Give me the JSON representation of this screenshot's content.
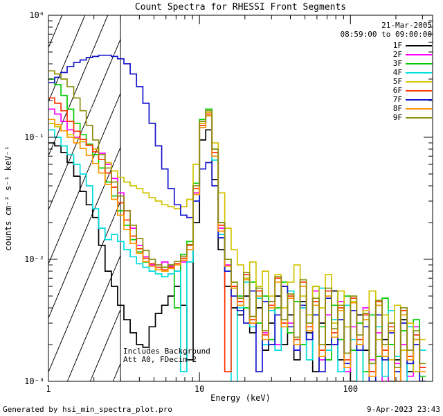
{
  "title": "Count Spectra for RHESSI Front Segments",
  "annotations": {
    "date": "21-Mar-2005",
    "time_range": "08:59:00 to 09:00:00",
    "note_line1": "Includes Background",
    "note_line2": "Att A0, FDecim 2"
  },
  "footer": {
    "generated_by": "Generated by hsi_min_spectra_plot.pro",
    "plot_date": "9-Apr-2023 23:43"
  },
  "chart_data": {
    "type": "line",
    "mode": "histogram-step",
    "title": "Count Spectra for RHESSI Front Segments",
    "xlabel": "Energy (keV)",
    "ylabel": "counts cm⁻² s⁻¹ keV⁻¹",
    "x_scale": "log",
    "y_scale": "log",
    "xlim": [
      1,
      350
    ],
    "ylim": [
      0.001,
      1
    ],
    "grid": false,
    "legend_position": "top-right-inside",
    "x_ticks": [
      {
        "v": 1,
        "label": "1"
      },
      {
        "v": 10,
        "label": "10"
      },
      {
        "v": 100,
        "label": "100"
      }
    ],
    "y_ticks": [
      {
        "v": 0.001,
        "label": "10⁻³"
      },
      {
        "v": 0.01,
        "label": "10⁻²"
      },
      {
        "v": 0.1,
        "label": "10⁻¹"
      },
      {
        "v": 1,
        "label": "10⁰"
      }
    ],
    "hatch_region": {
      "x_start": 1,
      "x_end": 3
    },
    "energies": [
      1.0,
      1.1,
      1.21,
      1.33,
      1.47,
      1.62,
      1.78,
      1.96,
      2.15,
      2.37,
      2.61,
      2.87,
      3.16,
      3.48,
      3.83,
      4.22,
      4.64,
      5.11,
      5.62,
      6.19,
      6.81,
      7.5,
      8.25,
      9.08,
      10.0,
      11.0,
      12.1,
      13.3,
      14.7,
      16.2,
      17.8,
      19.6,
      21.5,
      23.7,
      26.1,
      28.7,
      31.6,
      34.8,
      38.3,
      42.2,
      46.4,
      51.1,
      56.2,
      61.9,
      68.1,
      75.0,
      82.5,
      90.8,
      100,
      110,
      121,
      133,
      147,
      162,
      178,
      196,
      215,
      237,
      261,
      287
    ],
    "series": [
      {
        "name": "1F",
        "color": "#000000",
        "values": [
          0.09,
          0.085,
          0.075,
          0.062,
          0.048,
          0.036,
          0.028,
          0.022,
          0.013,
          0.008,
          0.006,
          0.0042,
          0.0032,
          0.0025,
          0.002,
          0.0019,
          0.0028,
          0.0036,
          0.0042,
          0.005,
          0.006,
          0.0042,
          0.0015,
          0.02,
          0.095,
          0.115,
          0.045,
          0.012,
          0.006,
          0.004,
          0.0035,
          0.005,
          0.0025,
          0.004,
          0.0018,
          0.003,
          0.005,
          0.002,
          0.0035,
          0.0015,
          0.0045,
          0.0025,
          0.0012,
          0.003,
          0.002,
          0.0055,
          0.0015,
          0.0028,
          0.001,
          0.0035,
          0.0018,
          0.0012,
          0.0042,
          0.0022,
          0.001,
          0.0015,
          0.0032,
          0.0012,
          0.0022,
          0.001
        ]
      },
      {
        "name": "2F",
        "color": "#ff00ff",
        "values": [
          0.17,
          0.155,
          0.135,
          0.115,
          0.1,
          0.092,
          0.086,
          0.08,
          0.074,
          0.06,
          0.046,
          0.035,
          0.025,
          0.018,
          0.013,
          0.0105,
          0.009,
          0.009,
          0.0095,
          0.0088,
          0.008,
          0.0095,
          0.012,
          0.035,
          0.13,
          0.16,
          0.07,
          0.018,
          0.009,
          0.006,
          0.0045,
          0.007,
          0.003,
          0.0055,
          0.0025,
          0.0045,
          0.002,
          0.006,
          0.003,
          0.0018,
          0.004,
          0.0022,
          0.0055,
          0.0015,
          0.0035,
          0.002,
          0.0045,
          0.0012,
          0.0028,
          0.0018,
          0.004,
          0.0015,
          0.0025,
          0.001,
          0.003,
          0.0014,
          0.002,
          0.0011,
          0.0028,
          0.0013
        ]
      },
      {
        "name": "3F",
        "color": "#00cc00",
        "values": [
          0.3,
          0.27,
          0.22,
          0.17,
          0.13,
          0.105,
          0.088,
          0.072,
          0.056,
          0.043,
          0.033,
          0.025,
          0.019,
          0.0145,
          0.0115,
          0.0095,
          0.0088,
          0.0082,
          0.0086,
          0.009,
          0.004,
          0.011,
          0.014,
          0.042,
          0.14,
          0.17,
          0.08,
          0.02,
          0.01,
          0.0065,
          0.005,
          0.004,
          0.0065,
          0.003,
          0.005,
          0.0022,
          0.004,
          0.0065,
          0.0025,
          0.0045,
          0.002,
          0.0035,
          0.006,
          0.0028,
          0.0015,
          0.0042,
          0.0022,
          0.005,
          0.0018,
          0.003,
          0.0012,
          0.0035,
          0.0016,
          0.0048,
          0.002,
          0.0012,
          0.0026,
          0.0014,
          0.0032,
          0.0011
        ]
      },
      {
        "name": "4F",
        "color": "#00dddd",
        "values": [
          0.115,
          0.1,
          0.085,
          0.072,
          0.06,
          0.05,
          0.04,
          0.026,
          0.018,
          0.0145,
          0.016,
          0.014,
          0.012,
          0.0105,
          0.0092,
          0.0086,
          0.008,
          0.0076,
          0.0072,
          0.0076,
          0.008,
          0.0012,
          0.0095,
          0.03,
          0.12,
          0.15,
          0.065,
          0.016,
          0.008,
          0.0009,
          0.004,
          0.0065,
          0.0028,
          0.0048,
          0.002,
          0.0038,
          0.0018,
          0.0032,
          0.0055,
          0.0022,
          0.004,
          0.0015,
          0.0035,
          0.0058,
          0.0018,
          0.0032,
          0.0012,
          0.0042,
          0.0022,
          0.0008,
          0.0032,
          0.0014,
          0.0028,
          0.0011,
          0.0038,
          0.0016,
          0.0009,
          0.0028,
          0.0012,
          0.0018
        ]
      },
      {
        "name": "5F",
        "color": "#d2c400",
        "values": [
          0.13,
          0.122,
          0.113,
          0.105,
          0.098,
          0.092,
          0.086,
          0.08,
          0.072,
          0.062,
          0.053,
          0.047,
          0.043,
          0.04,
          0.038,
          0.035,
          0.032,
          0.03,
          0.028,
          0.027,
          0.026,
          0.027,
          0.031,
          0.06,
          0.13,
          0.16,
          0.09,
          0.035,
          0.018,
          0.012,
          0.009,
          0.007,
          0.0095,
          0.006,
          0.008,
          0.005,
          0.0075,
          0.004,
          0.0065,
          0.009,
          0.005,
          0.0035,
          0.006,
          0.004,
          0.0075,
          0.003,
          0.0055,
          0.0028,
          0.0045,
          0.002,
          0.0038,
          0.0055,
          0.0022,
          0.0035,
          0.0015,
          0.0042,
          0.0018,
          0.003,
          0.0012,
          0.0022
        ]
      },
      {
        "name": "6F",
        "color": "#ff3300",
        "values": [
          0.21,
          0.19,
          0.165,
          0.135,
          0.112,
          0.096,
          0.086,
          0.076,
          0.066,
          0.051,
          0.039,
          0.029,
          0.021,
          0.0155,
          0.0122,
          0.0102,
          0.0092,
          0.0086,
          0.0082,
          0.0086,
          0.0092,
          0.0102,
          0.013,
          0.038,
          0.125,
          0.155,
          0.075,
          0.019,
          0.0012,
          0.006,
          0.0045,
          0.0075,
          0.0032,
          0.0055,
          0.0024,
          0.0042,
          0.007,
          0.003,
          0.005,
          0.0022,
          0.0065,
          0.0028,
          0.0045,
          0.0018,
          0.0055,
          0.0025,
          0.004,
          0.0015,
          0.0048,
          0.0022,
          0.0035,
          0.0012,
          0.0045,
          0.0018,
          0.0028,
          0.001,
          0.0038,
          0.0016,
          0.0024,
          0.0013
        ]
      },
      {
        "name": "7F",
        "color": "#1515cc",
        "values": [
          0.28,
          0.31,
          0.34,
          0.38,
          0.41,
          0.43,
          0.45,
          0.46,
          0.47,
          0.47,
          0.46,
          0.44,
          0.4,
          0.33,
          0.26,
          0.19,
          0.13,
          0.085,
          0.055,
          0.038,
          0.028,
          0.023,
          0.022,
          0.03,
          0.055,
          0.062,
          0.04,
          0.015,
          0.008,
          0.005,
          0.0038,
          0.003,
          0.0055,
          0.0012,
          0.0045,
          0.002,
          0.0035,
          0.006,
          0.0028,
          0.0018,
          0.0042,
          0.0022,
          0.0035,
          0.0012,
          0.0048,
          0.002,
          0.0032,
          0.0014,
          0.0038,
          0.0018,
          0.0028,
          0.001,
          0.0035,
          0.0015,
          0.0025,
          0.0012,
          0.003,
          0.0014,
          0.002,
          0.001
        ]
      },
      {
        "name": "8F",
        "color": "#ff9900",
        "values": [
          0.14,
          0.127,
          0.113,
          0.1,
          0.09,
          0.081,
          0.071,
          0.061,
          0.051,
          0.041,
          0.031,
          0.023,
          0.0175,
          0.0135,
          0.0112,
          0.0096,
          0.0088,
          0.0082,
          0.008,
          0.0084,
          0.009,
          0.0098,
          0.012,
          0.034,
          0.12,
          0.15,
          0.07,
          0.017,
          0.0088,
          0.0058,
          0.0042,
          0.0068,
          0.003,
          0.005,
          0.0022,
          0.004,
          0.0065,
          0.0028,
          0.0048,
          0.002,
          0.006,
          0.0026,
          0.0042,
          0.0016,
          0.005,
          0.0023,
          0.0038,
          0.0013,
          0.0044,
          0.002,
          0.0032,
          0.0011,
          0.0042,
          0.0016,
          0.0026,
          0.0009,
          0.0035,
          0.0015,
          0.0022,
          0.0012
        ]
      },
      {
        "name": "9F",
        "color": "#8f8f12",
        "values": [
          0.35,
          0.33,
          0.3,
          0.26,
          0.21,
          0.165,
          0.125,
          0.095,
          0.072,
          0.056,
          0.043,
          0.033,
          0.025,
          0.019,
          0.0148,
          0.0118,
          0.01,
          0.009,
          0.0086,
          0.009,
          0.0096,
          0.0106,
          0.0132,
          0.04,
          0.135,
          0.165,
          0.08,
          0.02,
          0.01,
          0.0065,
          0.0048,
          0.0078,
          0.0034,
          0.0058,
          0.0026,
          0.0045,
          0.0072,
          0.0032,
          0.0052,
          0.0023,
          0.0068,
          0.003,
          0.0048,
          0.002,
          0.0058,
          0.0027,
          0.0042,
          0.0017,
          0.005,
          0.0024,
          0.0036,
          0.0014,
          0.0046,
          0.002,
          0.003,
          0.0013,
          0.004,
          0.0018,
          0.0026,
          0.0014
        ]
      }
    ]
  }
}
